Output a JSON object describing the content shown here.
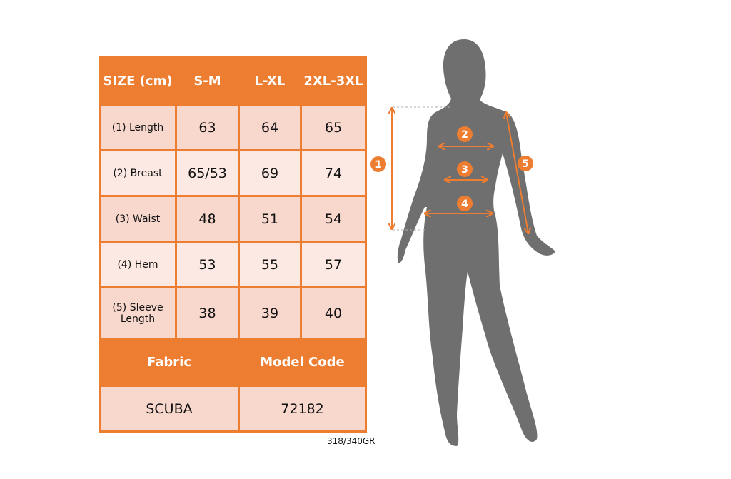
{
  "table": {
    "header": [
      "SIZE (cm)",
      "S-M",
      "L-XL",
      "2XL-3XL"
    ],
    "rows": [
      {
        "label": "(1) Length",
        "values": [
          "63",
          "64",
          "65"
        ]
      },
      {
        "label": "(2) Breast",
        "values": [
          "65/53",
          "69",
          "74"
        ]
      },
      {
        "label": "(3) Waist",
        "values": [
          "48",
          "51",
          "54"
        ]
      },
      {
        "label": "(4) Hem",
        "values": [
          "53",
          "55",
          "57"
        ]
      },
      {
        "label": "(5) Sleeve Length",
        "values": [
          "38",
          "39",
          "40"
        ]
      }
    ],
    "fabric_label": "Fabric",
    "model_code_label": "Model Code",
    "fabric": "SCUBA",
    "model_code": "72182"
  },
  "weight": "318/340GR",
  "markers": [
    "1",
    "2",
    "3",
    "4",
    "5"
  ],
  "colors": {
    "accent": "#ed7d31",
    "row_dark": "#f8d8cd",
    "row_light": "#fce9e3",
    "silhouette": "#6f6f6f"
  }
}
